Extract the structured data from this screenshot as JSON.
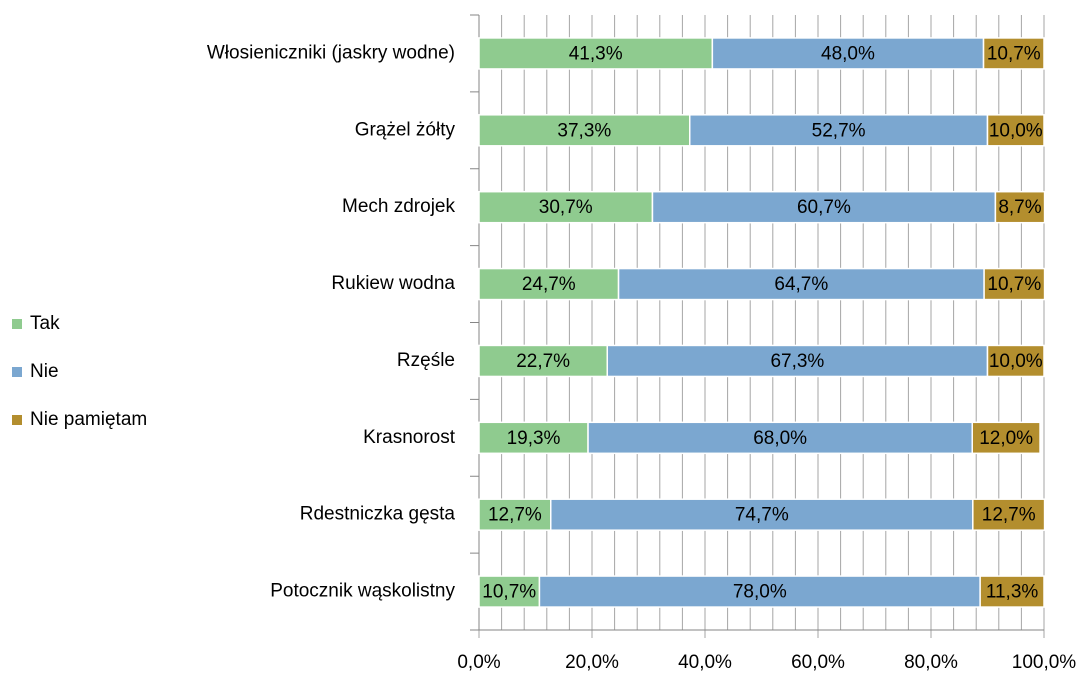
{
  "chart_data": {
    "type": "stacked_barh",
    "categories": [
      "Włosieniczniki (jaskry wodne)",
      "Grążel żółty",
      "Mech zdrojek",
      "Rukiew wodna",
      "Rzęśle",
      "Krasnorost",
      "Rdestniczka gęsta",
      "Potocznik wąskolistny"
    ],
    "series": [
      {
        "name": "Tak",
        "color": "#8fcb8f",
        "values": [
          41.3,
          37.3,
          30.7,
          24.7,
          22.7,
          19.3,
          12.7,
          10.7
        ],
        "value_labels": [
          "41,3%",
          "37,3%",
          "30,7%",
          "24,7%",
          "22,7%",
          "19,3%",
          "12,7%",
          "10,7%"
        ]
      },
      {
        "name": "Nie",
        "color": "#7ba7d0",
        "values": [
          48.0,
          52.7,
          60.7,
          64.7,
          67.3,
          68.0,
          74.7,
          78.0
        ],
        "value_labels": [
          "48,0%",
          "52,7%",
          "60,7%",
          "64,7%",
          "67,3%",
          "68,0%",
          "74,7%",
          "78,0%"
        ]
      },
      {
        "name": "Nie pamiętam",
        "color": "#b38e2e",
        "values": [
          10.7,
          10.0,
          8.7,
          10.7,
          10.0,
          12.0,
          12.7,
          11.3
        ],
        "value_labels": [
          "10,7%",
          "10,0%",
          "8,7%",
          "10,7%",
          "10,0%",
          "12,0%",
          "12,7%",
          "11,3%"
        ]
      }
    ],
    "xlim": [
      0,
      100
    ],
    "xticks": [
      {
        "value": 0,
        "label": "0,0%"
      },
      {
        "value": 20,
        "label": "20,0%"
      },
      {
        "value": 40,
        "label": "40,0%"
      },
      {
        "value": 60,
        "label": "60,0%"
      },
      {
        "value": 80,
        "label": "80,0%"
      },
      {
        "value": 100,
        "label": "100,0%"
      }
    ],
    "grid": true,
    "legend": "left"
  }
}
